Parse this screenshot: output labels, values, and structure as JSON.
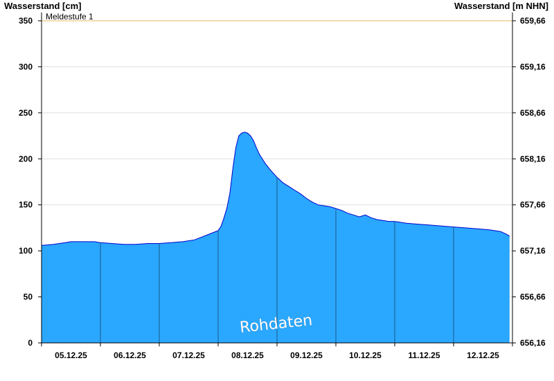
{
  "chart_data": {
    "type": "area",
    "y_left": {
      "label": "Wasserstand [cm]",
      "ticks": [
        "350",
        "300",
        "250",
        "200",
        "150",
        "100",
        "50",
        "0"
      ],
      "lim": [
        0,
        350
      ]
    },
    "y_right": {
      "label": "Wasserstand [m NHN]",
      "ticks": [
        "659,66",
        "659,16",
        "658,66",
        "658,16",
        "657,66",
        "657,16",
        "656,66",
        "656,16"
      ]
    },
    "x_labels": [
      "05.12.25",
      "06.12.25",
      "07.12.25",
      "08.12.25",
      "09.12.25",
      "10.12.25",
      "11.12.25",
      "12.12.25"
    ],
    "x_range_days": [
      0,
      8
    ],
    "threshold": {
      "label": "Meldestufe 1",
      "value": 350,
      "color": "#e8b560"
    },
    "watermark": "Rohdaten",
    "fill_color": "#2aa7ff",
    "line_color": "#0000cc",
    "grid": true,
    "series": [
      {
        "values": [
          [
            0.0,
            106
          ],
          [
            0.2,
            107
          ],
          [
            0.4,
            109
          ],
          [
            0.5,
            110
          ],
          [
            0.7,
            110
          ],
          [
            0.9,
            110
          ],
          [
            1.0,
            109
          ],
          [
            1.2,
            108
          ],
          [
            1.4,
            107
          ],
          [
            1.6,
            107
          ],
          [
            1.8,
            108
          ],
          [
            2.0,
            108
          ],
          [
            2.2,
            109
          ],
          [
            2.4,
            110
          ],
          [
            2.6,
            112
          ],
          [
            2.8,
            117
          ],
          [
            3.0,
            122
          ],
          [
            3.05,
            127
          ],
          [
            3.1,
            136
          ],
          [
            3.15,
            147
          ],
          [
            3.2,
            163
          ],
          [
            3.25,
            190
          ],
          [
            3.3,
            212
          ],
          [
            3.35,
            225
          ],
          [
            3.4,
            228
          ],
          [
            3.45,
            229
          ],
          [
            3.5,
            228
          ],
          [
            3.55,
            225
          ],
          [
            3.6,
            220
          ],
          [
            3.65,
            212
          ],
          [
            3.7,
            205
          ],
          [
            3.8,
            195
          ],
          [
            3.9,
            187
          ],
          [
            4.0,
            180
          ],
          [
            4.1,
            174
          ],
          [
            4.2,
            170
          ],
          [
            4.3,
            166
          ],
          [
            4.4,
            162
          ],
          [
            4.5,
            157
          ],
          [
            4.6,
            153
          ],
          [
            4.7,
            150
          ],
          [
            4.8,
            149
          ],
          [
            4.9,
            148
          ],
          [
            5.0,
            146
          ],
          [
            5.1,
            144
          ],
          [
            5.2,
            141
          ],
          [
            5.3,
            139
          ],
          [
            5.4,
            137
          ],
          [
            5.5,
            139
          ],
          [
            5.6,
            136
          ],
          [
            5.7,
            134
          ],
          [
            5.8,
            133
          ],
          [
            5.9,
            132
          ],
          [
            6.0,
            132
          ],
          [
            6.2,
            130
          ],
          [
            6.4,
            129
          ],
          [
            6.6,
            128
          ],
          [
            6.8,
            127
          ],
          [
            7.0,
            126
          ],
          [
            7.2,
            125
          ],
          [
            7.4,
            124
          ],
          [
            7.6,
            123
          ],
          [
            7.8,
            121
          ],
          [
            7.9,
            118
          ],
          [
            7.95,
            116
          ]
        ]
      }
    ]
  }
}
